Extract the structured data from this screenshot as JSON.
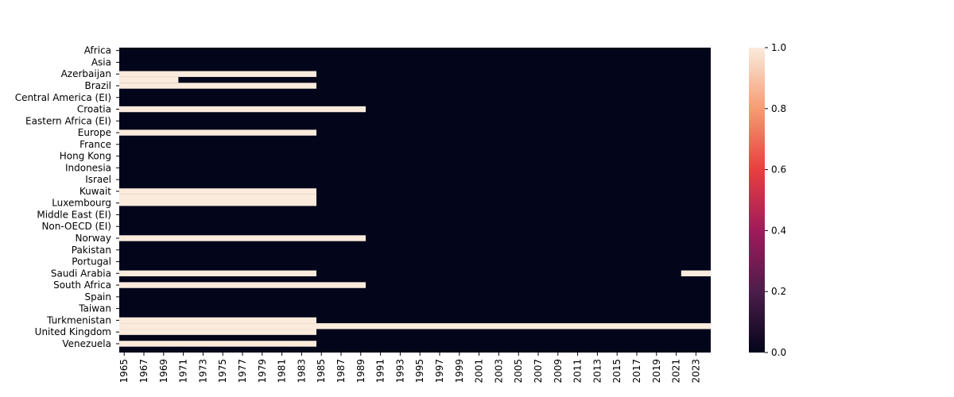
{
  "chart_data": {
    "type": "heatmap",
    "title": "",
    "xlabel": "",
    "ylabel": "",
    "x_start": 1965,
    "x_end": 2024,
    "x_tick_labels": [
      "1965",
      "1967",
      "1969",
      "1971",
      "1973",
      "1975",
      "1977",
      "1979",
      "1981",
      "1983",
      "1985",
      "1987",
      "1989",
      "1991",
      "1993",
      "1995",
      "1997",
      "1999",
      "2001",
      "2003",
      "2005",
      "2007",
      "2009",
      "2011",
      "2013",
      "2015",
      "2017",
      "2019",
      "2021",
      "2023"
    ],
    "y_tick_labels": [
      "Africa",
      "Asia",
      "Azerbaijan",
      "Brazil",
      "Central America (EI)",
      "Croatia",
      "Eastern Africa (EI)",
      "Europe",
      "France",
      "Hong Kong",
      "Indonesia",
      "Israel",
      "Kuwait",
      "Luxembourg",
      "Middle East (EI)",
      "Non-OECD (EI)",
      "Norway",
      "Pakistan",
      "Portugal",
      "Saudi Arabia",
      "South Africa",
      "Spain",
      "Taiwan",
      "Turkmenistan",
      "United Kingdom",
      "Venezuela"
    ],
    "row_count": 52,
    "value_range": [
      0,
      0
    ],
    "value_range_note": "",
    "colorbar": {
      "min": 0.0,
      "max": 1.0,
      "tick_labels": [
        "0.0",
        "0.2",
        "0.4",
        "0.6",
        "0.8",
        "1.0"
      ],
      "colors": [
        "#03051a",
        "#4c1d4b",
        "#a11a5b",
        "#e83f3f",
        "#f69c73",
        "#faebdd"
      ]
    },
    "highlighted_cells": [
      {
        "row": 4,
        "from": 1965,
        "to": 1984
      },
      {
        "row": 5,
        "from": 1965,
        "to": 1970
      },
      {
        "row": 6,
        "from": 1965,
        "to": 1984
      },
      {
        "row": 10,
        "from": 1965,
        "to": 1989
      },
      {
        "row": 14,
        "from": 1965,
        "to": 1984
      },
      {
        "row": 24,
        "from": 1965,
        "to": 1984
      },
      {
        "row": 25,
        "from": 1965,
        "to": 1984
      },
      {
        "row": 26,
        "from": 1965,
        "to": 1984
      },
      {
        "row": 32,
        "from": 1965,
        "to": 1989
      },
      {
        "row": 38,
        "from": 1965,
        "to": 1984
      },
      {
        "row": 38,
        "from": 2022,
        "to": 2024
      },
      {
        "row": 40,
        "from": 1965,
        "to": 1989
      },
      {
        "row": 46,
        "from": 1965,
        "to": 1984
      },
      {
        "row": 47,
        "from": 1965,
        "to": 2024
      },
      {
        "row": 48,
        "from": 1965,
        "to": 1984
      },
      {
        "row": 50,
        "from": 1965,
        "to": 1984
      }
    ]
  }
}
